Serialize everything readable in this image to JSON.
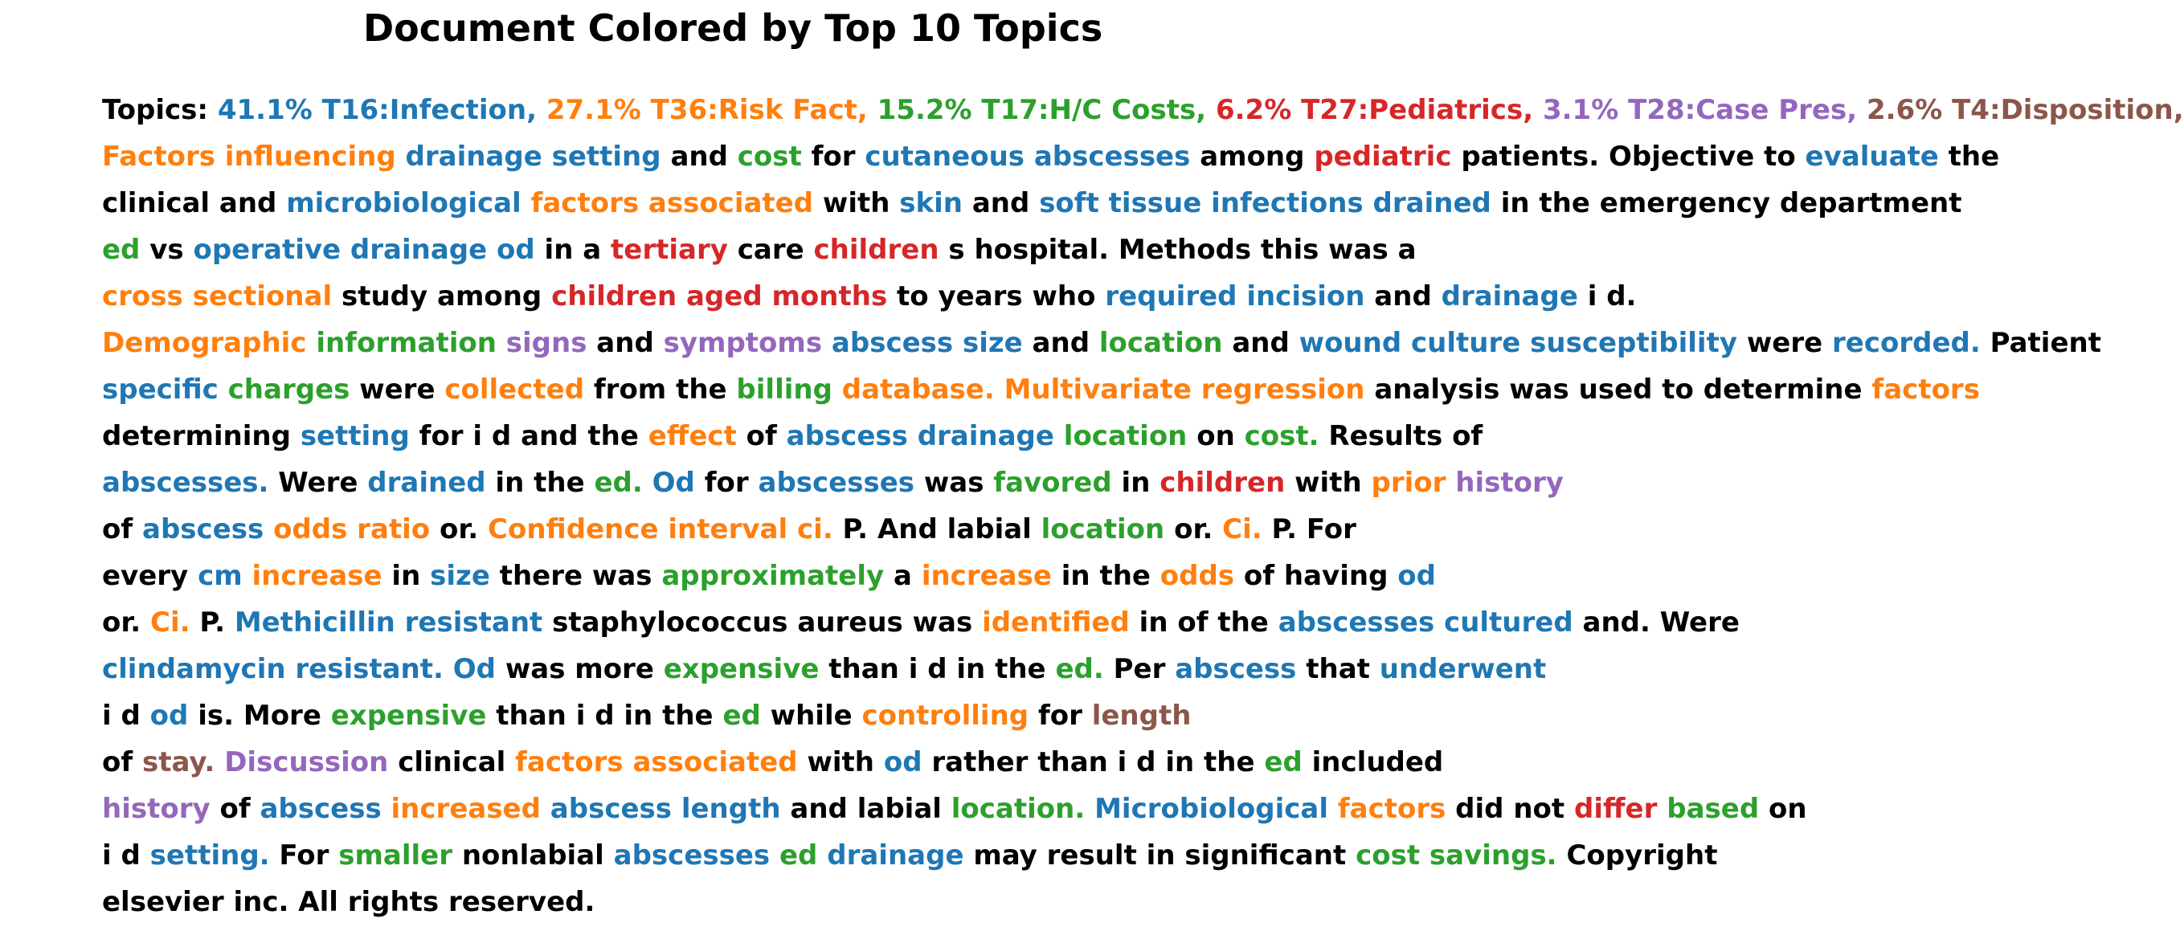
{
  "title": "Document Colored by Top 10 Topics",
  "colors": {
    "black": "#000000",
    "blue": "#1f77b4",
    "orange": "#ff7f0e",
    "green": "#2ca02c",
    "red": "#d62728",
    "purple": "#9467bd",
    "brown": "#8c564b"
  },
  "lines": [
    [
      [
        "Topics: ",
        "black"
      ],
      [
        "41.1% T16:Infection,",
        "blue"
      ],
      [
        " ",
        "black"
      ],
      [
        "27.1% T36:Risk Fact,",
        "orange"
      ],
      [
        " ",
        "black"
      ],
      [
        "15.2% T17:H/C Costs,",
        "green"
      ],
      [
        " ",
        "black"
      ],
      [
        "6.2% T27:Pediatrics,",
        "red"
      ],
      [
        " ",
        "black"
      ],
      [
        "3.1% T28:Case Pres,",
        "purple"
      ],
      [
        " ",
        "black"
      ],
      [
        "2.6% T4:Disposition,",
        "brown"
      ]
    ],
    [
      [
        "Factors influencing",
        "orange"
      ],
      [
        " ",
        "black"
      ],
      [
        "drainage setting",
        "blue"
      ],
      [
        " and ",
        "black"
      ],
      [
        "cost",
        "green"
      ],
      [
        " for ",
        "black"
      ],
      [
        "cutaneous abscesses",
        "blue"
      ],
      [
        " among ",
        "black"
      ],
      [
        "pediatric",
        "red"
      ],
      [
        " patients. Objective to ",
        "black"
      ],
      [
        "evaluate",
        "blue"
      ],
      [
        " the",
        "black"
      ]
    ],
    [
      [
        "clinical and ",
        "black"
      ],
      [
        "microbiological",
        "blue"
      ],
      [
        " ",
        "black"
      ],
      [
        "factors associated",
        "orange"
      ],
      [
        " with ",
        "black"
      ],
      [
        "skin",
        "blue"
      ],
      [
        " and ",
        "black"
      ],
      [
        "soft tissue infections drained",
        "blue"
      ],
      [
        " in the emergency department",
        "black"
      ]
    ],
    [
      [
        "ed",
        "green"
      ],
      [
        " vs ",
        "black"
      ],
      [
        "operative drainage od",
        "blue"
      ],
      [
        " in a ",
        "black"
      ],
      [
        "tertiary",
        "red"
      ],
      [
        " care ",
        "black"
      ],
      [
        "children",
        "red"
      ],
      [
        " s hospital. Methods this was a",
        "black"
      ]
    ],
    [
      [
        "cross sectional",
        "orange"
      ],
      [
        " study among ",
        "black"
      ],
      [
        "children aged months",
        "red"
      ],
      [
        " to years who ",
        "black"
      ],
      [
        "required incision",
        "blue"
      ],
      [
        " and ",
        "black"
      ],
      [
        "drainage",
        "blue"
      ],
      [
        " i d.",
        "black"
      ]
    ],
    [
      [
        "Demographic",
        "orange"
      ],
      [
        " ",
        "black"
      ],
      [
        "information",
        "green"
      ],
      [
        " ",
        "black"
      ],
      [
        "signs",
        "purple"
      ],
      [
        " and ",
        "black"
      ],
      [
        "symptoms",
        "purple"
      ],
      [
        " ",
        "black"
      ],
      [
        "abscess size",
        "blue"
      ],
      [
        " and ",
        "black"
      ],
      [
        "location",
        "green"
      ],
      [
        " and ",
        "black"
      ],
      [
        "wound culture susceptibility",
        "blue"
      ],
      [
        " were ",
        "black"
      ],
      [
        "recorded.",
        "blue"
      ],
      [
        " Patient",
        "black"
      ]
    ],
    [
      [
        "specific",
        "blue"
      ],
      [
        " ",
        "black"
      ],
      [
        "charges",
        "green"
      ],
      [
        " were ",
        "black"
      ],
      [
        "collected",
        "orange"
      ],
      [
        " from the ",
        "black"
      ],
      [
        "billing",
        "green"
      ],
      [
        " ",
        "black"
      ],
      [
        "database. Multivariate regression",
        "orange"
      ],
      [
        " analysis was used to determine ",
        "black"
      ],
      [
        "factors",
        "orange"
      ]
    ],
    [
      [
        "determining ",
        "black"
      ],
      [
        "setting",
        "blue"
      ],
      [
        " for i d and the ",
        "black"
      ],
      [
        "effect",
        "orange"
      ],
      [
        " of ",
        "black"
      ],
      [
        "abscess drainage",
        "blue"
      ],
      [
        " ",
        "black"
      ],
      [
        "location",
        "green"
      ],
      [
        " on ",
        "black"
      ],
      [
        "cost.",
        "green"
      ],
      [
        " Results of",
        "black"
      ]
    ],
    [
      [
        "abscesses.",
        "blue"
      ],
      [
        " Were ",
        "black"
      ],
      [
        "drained",
        "blue"
      ],
      [
        " in the ",
        "black"
      ],
      [
        "ed.",
        "green"
      ],
      [
        " ",
        "black"
      ],
      [
        "Od",
        "blue"
      ],
      [
        " for ",
        "black"
      ],
      [
        "abscesses",
        "blue"
      ],
      [
        " was ",
        "black"
      ],
      [
        "favored",
        "green"
      ],
      [
        " in ",
        "black"
      ],
      [
        "children",
        "red"
      ],
      [
        " with ",
        "black"
      ],
      [
        "prior",
        "orange"
      ],
      [
        " ",
        "black"
      ],
      [
        "history",
        "purple"
      ]
    ],
    [
      [
        "of ",
        "black"
      ],
      [
        "abscess",
        "blue"
      ],
      [
        " ",
        "black"
      ],
      [
        "odds ratio",
        "orange"
      ],
      [
        " or. ",
        "black"
      ],
      [
        "Confidence interval ci.",
        "orange"
      ],
      [
        " P. And labial ",
        "black"
      ],
      [
        "location",
        "green"
      ],
      [
        " or. ",
        "black"
      ],
      [
        "Ci.",
        "orange"
      ],
      [
        " P. For",
        "black"
      ]
    ],
    [
      [
        "every ",
        "black"
      ],
      [
        "cm",
        "blue"
      ],
      [
        " ",
        "black"
      ],
      [
        "increase",
        "orange"
      ],
      [
        " in ",
        "black"
      ],
      [
        "size",
        "blue"
      ],
      [
        " there was ",
        "black"
      ],
      [
        "approximately",
        "green"
      ],
      [
        " a ",
        "black"
      ],
      [
        "increase",
        "orange"
      ],
      [
        " in the ",
        "black"
      ],
      [
        "odds",
        "orange"
      ],
      [
        " of having ",
        "black"
      ],
      [
        "od",
        "blue"
      ]
    ],
    [
      [
        "or. ",
        "black"
      ],
      [
        "Ci.",
        "orange"
      ],
      [
        " P. ",
        "black"
      ],
      [
        "Methicillin resistant",
        "blue"
      ],
      [
        " staphylococcus aureus was ",
        "black"
      ],
      [
        "identified",
        "orange"
      ],
      [
        " in of the ",
        "black"
      ],
      [
        "abscesses cultured",
        "blue"
      ],
      [
        " and. Were",
        "black"
      ]
    ],
    [
      [
        "clindamycin resistant. Od",
        "blue"
      ],
      [
        " was more ",
        "black"
      ],
      [
        "expensive",
        "green"
      ],
      [
        " than i d in the ",
        "black"
      ],
      [
        "ed.",
        "green"
      ],
      [
        " Per ",
        "black"
      ],
      [
        "abscess",
        "blue"
      ],
      [
        " that ",
        "black"
      ],
      [
        "underwent",
        "blue"
      ]
    ],
    [
      [
        "i d ",
        "black"
      ],
      [
        "od",
        "blue"
      ],
      [
        " is. More ",
        "black"
      ],
      [
        "expensive",
        "green"
      ],
      [
        " than i d in the ",
        "black"
      ],
      [
        "ed",
        "green"
      ],
      [
        " while ",
        "black"
      ],
      [
        "controlling",
        "orange"
      ],
      [
        " for ",
        "black"
      ],
      [
        "length",
        "brown"
      ]
    ],
    [
      [
        "of ",
        "black"
      ],
      [
        "stay.",
        "brown"
      ],
      [
        " ",
        "black"
      ],
      [
        "Discussion",
        "purple"
      ],
      [
        " clinical ",
        "black"
      ],
      [
        "factors associated",
        "orange"
      ],
      [
        " with ",
        "black"
      ],
      [
        "od",
        "blue"
      ],
      [
        " rather than i d in the ",
        "black"
      ],
      [
        "ed",
        "green"
      ],
      [
        " included",
        "black"
      ]
    ],
    [
      [
        "history",
        "purple"
      ],
      [
        " of ",
        "black"
      ],
      [
        "abscess",
        "blue"
      ],
      [
        " ",
        "black"
      ],
      [
        "increased",
        "orange"
      ],
      [
        " ",
        "black"
      ],
      [
        "abscess length",
        "blue"
      ],
      [
        " and labial ",
        "black"
      ],
      [
        "location.",
        "green"
      ],
      [
        " ",
        "black"
      ],
      [
        "Microbiological",
        "blue"
      ],
      [
        " ",
        "black"
      ],
      [
        "factors",
        "orange"
      ],
      [
        " did not ",
        "black"
      ],
      [
        "differ",
        "red"
      ],
      [
        " ",
        "black"
      ],
      [
        "based",
        "green"
      ],
      [
        " on",
        "black"
      ]
    ],
    [
      [
        "i d ",
        "black"
      ],
      [
        "setting.",
        "blue"
      ],
      [
        " For ",
        "black"
      ],
      [
        "smaller",
        "green"
      ],
      [
        " nonlabial ",
        "black"
      ],
      [
        "abscesses",
        "blue"
      ],
      [
        " ",
        "black"
      ],
      [
        "ed",
        "green"
      ],
      [
        " ",
        "black"
      ],
      [
        "drainage",
        "blue"
      ],
      [
        " may result in significant ",
        "black"
      ],
      [
        "cost savings.",
        "green"
      ],
      [
        " Copyright",
        "black"
      ]
    ],
    [
      [
        "elsevier inc. All rights reserved.",
        "black"
      ]
    ]
  ]
}
